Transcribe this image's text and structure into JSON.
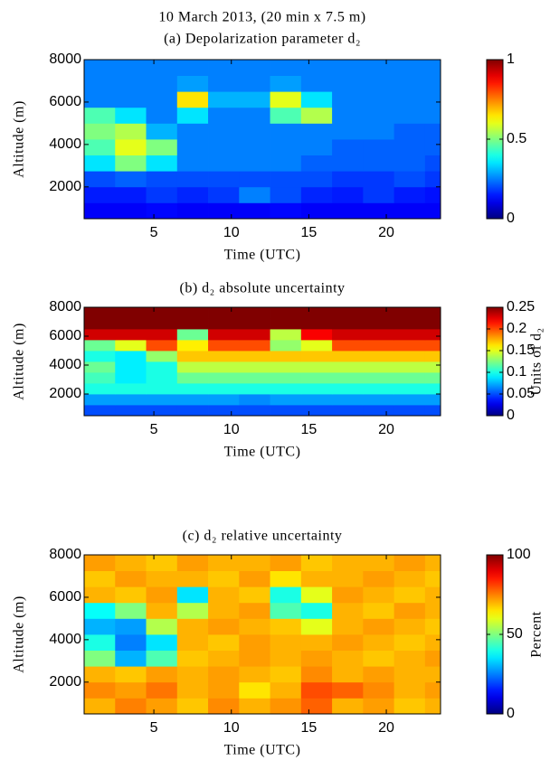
{
  "chart_data": [
    {
      "type": "heatmap",
      "suptitle": "10 March 2013, (20 min x 7.5 m)",
      "title": "(a) Depolarization parameter d₂",
      "xlabel": "Time (UTC)",
      "ylabel": "Altitude (m)",
      "colormap": "jet",
      "x_bins": [
        0.5,
        2.5,
        4.5,
        6.5,
        8.5,
        10.5,
        12.5,
        14.5,
        16.5,
        18.5,
        20.5,
        22.5,
        23.5
      ],
      "y_bins": [
        500,
        1250,
        2000,
        2750,
        3500,
        4250,
        5000,
        5750,
        6500,
        7250,
        8000
      ],
      "z": [
        [
          0.12,
          0.12,
          0.13,
          0.12,
          0.12,
          0.12,
          0.13,
          0.12,
          0.12,
          0.12,
          0.12,
          0.12
        ],
        [
          0.15,
          0.15,
          0.18,
          0.16,
          0.18,
          0.25,
          0.2,
          0.16,
          0.15,
          0.18,
          0.15,
          0.14
        ],
        [
          0.2,
          0.22,
          0.2,
          0.2,
          0.2,
          0.2,
          0.2,
          0.2,
          0.18,
          0.18,
          0.2,
          0.18
        ],
        [
          0.35,
          0.5,
          0.35,
          0.25,
          0.25,
          0.25,
          0.25,
          0.22,
          0.22,
          0.22,
          0.22,
          0.2
        ],
        [
          0.45,
          0.6,
          0.5,
          0.25,
          0.25,
          0.25,
          0.25,
          0.25,
          0.22,
          0.22,
          0.22,
          0.22
        ],
        [
          0.5,
          0.55,
          0.3,
          0.25,
          0.25,
          0.25,
          0.25,
          0.25,
          0.25,
          0.25,
          0.22,
          0.22
        ],
        [
          0.45,
          0.35,
          0.25,
          0.35,
          0.25,
          0.25,
          0.45,
          0.55,
          0.25,
          0.25,
          0.25,
          0.25
        ],
        [
          0.25,
          0.25,
          0.25,
          0.65,
          0.3,
          0.3,
          0.6,
          0.35,
          0.25,
          0.25,
          0.25,
          0.25
        ],
        [
          0.25,
          0.25,
          0.25,
          0.28,
          0.25,
          0.25,
          0.28,
          0.25,
          0.25,
          0.25,
          0.25,
          0.25
        ],
        [
          0.25,
          0.25,
          0.25,
          0.25,
          0.25,
          0.25,
          0.25,
          0.25,
          0.25,
          0.25,
          0.25,
          0.25
        ]
      ],
      "xlim": [
        0.5,
        23.5
      ],
      "ylim": [
        500,
        8000
      ],
      "xticks": [
        5,
        10,
        15,
        20
      ],
      "yticks": [
        2000,
        4000,
        6000,
        8000
      ],
      "clim": [
        0,
        1
      ],
      "cticks": [
        0,
        0.5,
        1
      ]
    },
    {
      "type": "heatmap",
      "title": "(b) d₂ absolute uncertainty",
      "xlabel": "Time (UTC)",
      "ylabel": "Altitude (m)",
      "clabel": "Units of d₂",
      "colormap": "jet",
      "x_bins": [
        0.5,
        2.5,
        4.5,
        6.5,
        8.5,
        10.5,
        12.5,
        14.5,
        16.5,
        18.5,
        20.5,
        22.5,
        23.5
      ],
      "y_bins": [
        500,
        1250,
        2000,
        2750,
        3500,
        4250,
        5000,
        5750,
        6500,
        7250,
        8000
      ],
      "z": [
        [
          0.05,
          0.05,
          0.05,
          0.05,
          0.05,
          0.05,
          0.05,
          0.05,
          0.05,
          0.05,
          0.05,
          0.05
        ],
        [
          0.07,
          0.07,
          0.07,
          0.07,
          0.07,
          0.065,
          0.07,
          0.07,
          0.07,
          0.07,
          0.07,
          0.07
        ],
        [
          0.1,
          0.1,
          0.1,
          0.1,
          0.1,
          0.1,
          0.1,
          0.1,
          0.1,
          0.1,
          0.1,
          0.1
        ],
        [
          0.11,
          0.09,
          0.1,
          0.12,
          0.12,
          0.12,
          0.12,
          0.12,
          0.12,
          0.12,
          0.12,
          0.12
        ],
        [
          0.12,
          0.09,
          0.1,
          0.14,
          0.14,
          0.14,
          0.14,
          0.14,
          0.14,
          0.14,
          0.14,
          0.14
        ],
        [
          0.1,
          0.09,
          0.13,
          0.17,
          0.17,
          0.17,
          0.17,
          0.17,
          0.17,
          0.17,
          0.17,
          0.17
        ],
        [
          0.12,
          0.15,
          0.2,
          0.16,
          0.2,
          0.2,
          0.13,
          0.15,
          0.2,
          0.2,
          0.2,
          0.2
        ],
        [
          0.23,
          0.23,
          0.23,
          0.12,
          0.23,
          0.23,
          0.14,
          0.22,
          0.23,
          0.23,
          0.23,
          0.23
        ],
        [
          0.25,
          0.25,
          0.25,
          0.25,
          0.25,
          0.25,
          0.25,
          0.25,
          0.25,
          0.25,
          0.25,
          0.25
        ],
        [
          0.25,
          0.25,
          0.25,
          0.25,
          0.25,
          0.25,
          0.25,
          0.25,
          0.25,
          0.25,
          0.25,
          0.25
        ]
      ],
      "xlim": [
        0.5,
        23.5
      ],
      "ylim": [
        500,
        8000
      ],
      "xticks": [
        5,
        10,
        15,
        20
      ],
      "yticks": [
        2000,
        4000,
        6000,
        8000
      ],
      "clim": [
        0,
        0.25
      ],
      "cticks": [
        0,
        0.05,
        0.1,
        0.15,
        0.2,
        0.25
      ]
    },
    {
      "type": "heatmap",
      "title": "(c) d₂ relative uncertainty",
      "xlabel": "Time (UTC)",
      "ylabel": "Altitude (m)",
      "clabel": "Percent",
      "colormap": "jet",
      "x_bins": [
        0.5,
        2.5,
        4.5,
        6.5,
        8.5,
        10.5,
        12.5,
        14.5,
        16.5,
        18.5,
        20.5,
        22.5,
        23.5
      ],
      "y_bins": [
        500,
        1250,
        2000,
        2750,
        3500,
        4250,
        5000,
        5750,
        6500,
        7250,
        8000
      ],
      "z": [
        [
          70,
          75,
          72,
          68,
          74,
          70,
          73,
          78,
          70,
          72,
          68,
          70
        ],
        [
          74,
          72,
          76,
          70,
          72,
          65,
          70,
          80,
          78,
          74,
          70,
          72
        ],
        [
          70,
          68,
          72,
          70,
          72,
          70,
          68,
          74,
          70,
          72,
          70,
          70
        ],
        [
          50,
          30,
          45,
          68,
          70,
          72,
          70,
          72,
          70,
          68,
          70,
          72
        ],
        [
          40,
          25,
          35,
          70,
          68,
          72,
          70,
          70,
          72,
          70,
          68,
          70
        ],
        [
          30,
          28,
          55,
          70,
          72,
          70,
          68,
          60,
          70,
          72,
          70,
          68
        ],
        [
          38,
          50,
          70,
          55,
          70,
          72,
          45,
          40,
          70,
          68,
          72,
          70
        ],
        [
          70,
          68,
          72,
          35,
          70,
          68,
          40,
          60,
          72,
          70,
          68,
          70
        ],
        [
          68,
          72,
          70,
          70,
          68,
          72,
          65,
          70,
          70,
          72,
          70,
          68
        ],
        [
          72,
          70,
          68,
          72,
          70,
          70,
          72,
          68,
          70,
          70,
          72,
          70
        ]
      ],
      "xlim": [
        0.5,
        23.5
      ],
      "ylim": [
        500,
        8000
      ],
      "xticks": [
        5,
        10,
        15,
        20
      ],
      "yticks": [
        2000,
        4000,
        6000,
        8000
      ],
      "clim": [
        0,
        100
      ],
      "cticks": [
        0,
        50,
        100
      ]
    }
  ]
}
